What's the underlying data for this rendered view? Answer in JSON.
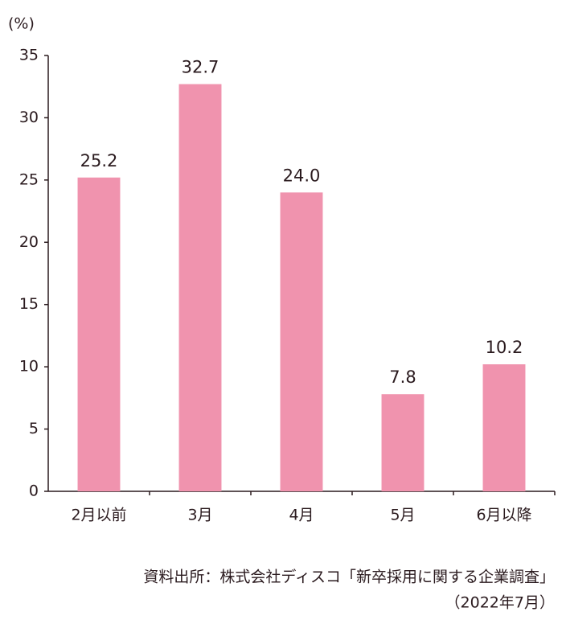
{
  "chart_data": {
    "type": "bar",
    "y_label": "(%)",
    "categories": [
      "2月以前",
      "3月",
      "4月",
      "5月",
      "6月以降"
    ],
    "values": [
      25.2,
      32.7,
      24.0,
      7.8,
      10.2
    ],
    "value_labels": [
      "25.2",
      "32.7",
      "24.0",
      "7.8",
      "10.2"
    ],
    "color": "#f093ae",
    "ylim": [
      0,
      35
    ],
    "yticks": [
      0,
      5,
      10,
      15,
      20,
      25,
      30,
      35
    ],
    "grid": false,
    "source": [
      "資料出所：株式会社ディスコ「新卒採用に関する企業調査」",
      "（2022年7月）"
    ]
  }
}
